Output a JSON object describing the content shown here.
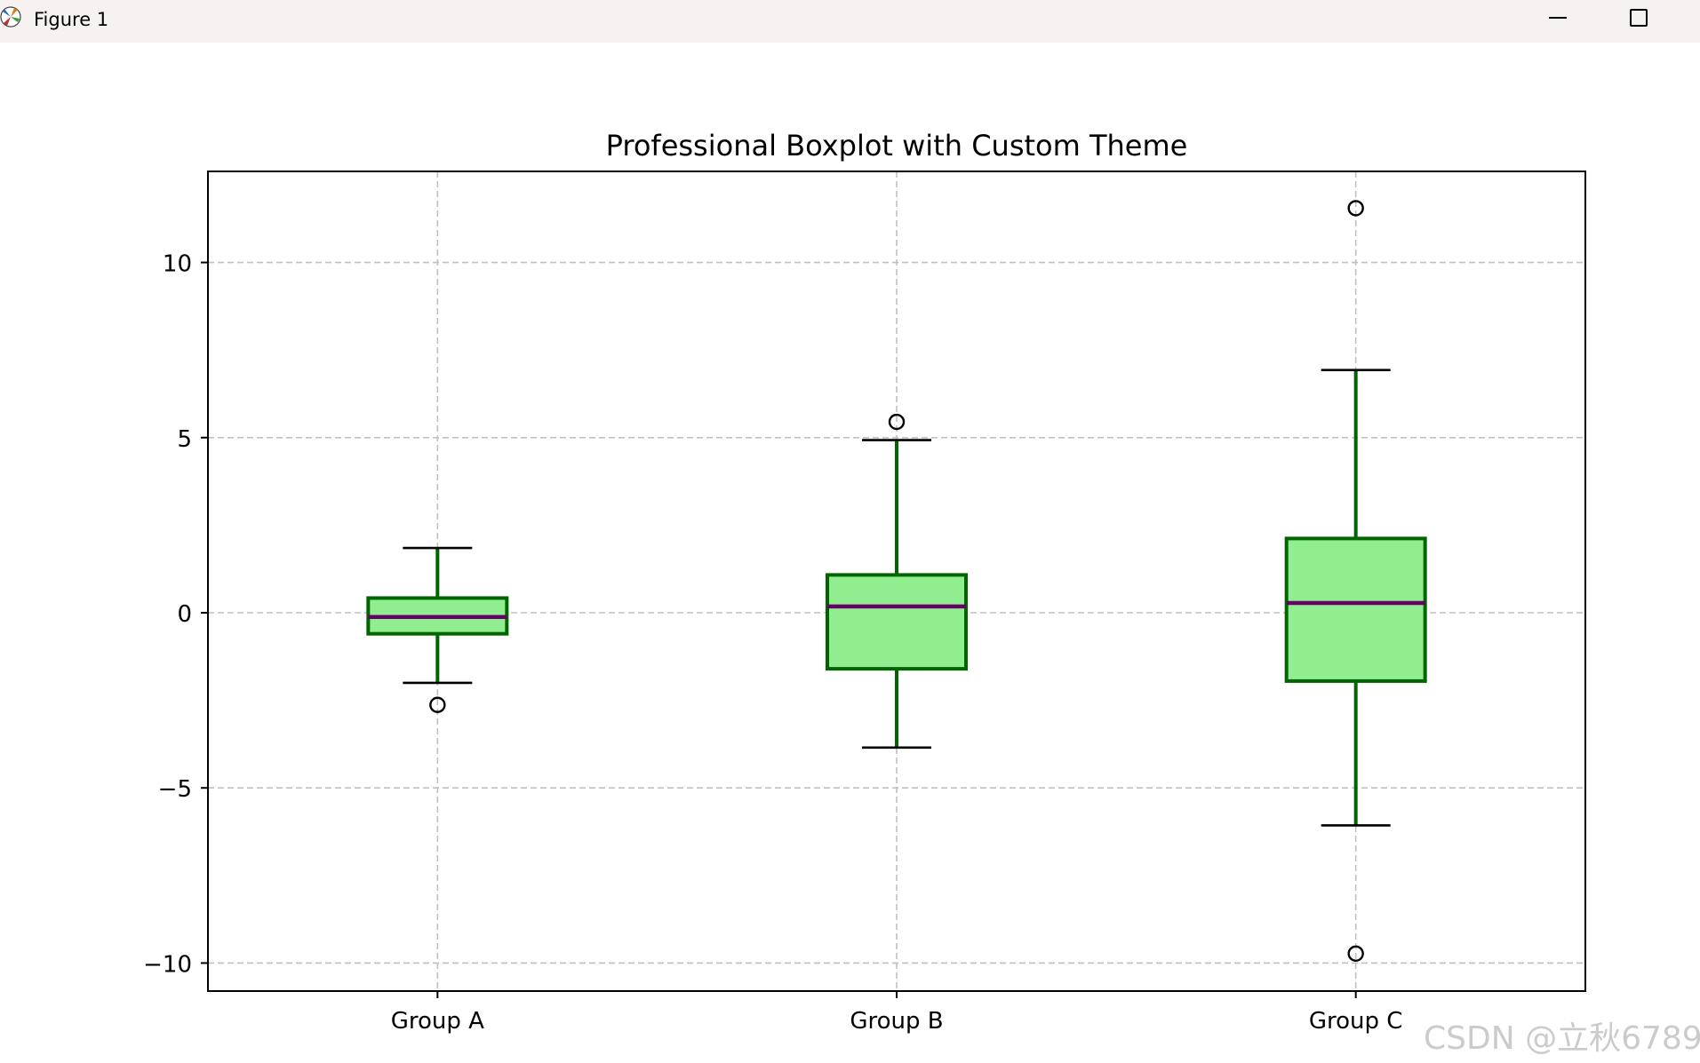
{
  "window": {
    "title": "Figure 1",
    "minimize_icon": "minimize-icon",
    "maximize_icon": "maximize-icon"
  },
  "watermark": "CSDN @立秋6789",
  "chart_data": {
    "type": "boxplot",
    "title": "Professional Boxplot with Custom Theme",
    "xlabel": "",
    "ylabel": "",
    "categories": [
      "Group A",
      "Group B",
      "Group C"
    ],
    "ylim": [
      -10.8,
      12.6
    ],
    "yticks": [
      -10,
      -5,
      0,
      5,
      10
    ],
    "ytick_labels": [
      "−10",
      "−5",
      "0",
      "5",
      "10"
    ],
    "grid": true,
    "boxes": [
      {
        "name": "Group A",
        "whisker_low": -2.0,
        "q1": -0.6,
        "median": -0.12,
        "q3": 0.42,
        "whisker_high": 1.85,
        "outliers": [
          -2.63
        ]
      },
      {
        "name": "Group B",
        "whisker_low": -3.85,
        "q1": -1.6,
        "median": 0.18,
        "q3": 1.08,
        "whisker_high": 4.93,
        "outliers": [
          5.45
        ]
      },
      {
        "name": "Group C",
        "whisker_low": -6.07,
        "q1": -1.95,
        "median": 0.28,
        "q3": 2.12,
        "whisker_high": 6.93,
        "outliers": [
          11.55,
          -9.73
        ]
      }
    ],
    "colors": {
      "box_fill": "#90ee90",
      "box_edge": "#006400",
      "median": "#660066",
      "whisker": "#006400",
      "cap": "#000000",
      "grid": "#c0c0c0"
    }
  }
}
